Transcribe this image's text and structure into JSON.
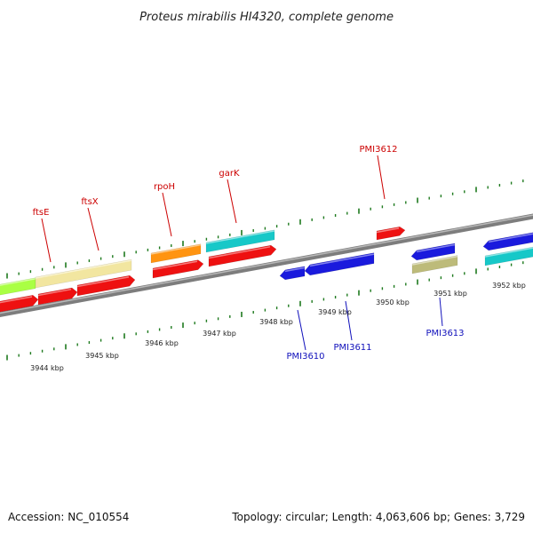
{
  "title": "Proteus mirabilis HI4320, complete genome",
  "footer": {
    "accession": "Accession: NC_010554",
    "summary": "Topology: circular; Length: 4,063,606 bp; Genes: 3,729"
  },
  "colors": {
    "backbone": "#8a8a8a",
    "tick": "#1e7a1e",
    "red": "#ee1111",
    "blue": "#1a1add",
    "lime": "#aaff44",
    "khaki": "#f2e6a0",
    "orange": "#ff9411",
    "cyan": "#17c8c8",
    "olive": "#bdbb7a",
    "label_red": "#cc0000",
    "label_blue": "#1010bb"
  },
  "kbp_labels": [
    "3944 kbp",
    "3945 kbp",
    "3946 kbp",
    "3947 kbp",
    "3948 kbp",
    "3949 kbp",
    "3950 kbp",
    "3951 kbp",
    "3952 kbp"
  ],
  "gene_labels_top": [
    "ftsE",
    "ftsX",
    "rpoH",
    "garK",
    "PMI3612"
  ],
  "gene_labels_bottom": [
    "PMI3610",
    "PMI3611",
    "PMI3613"
  ],
  "features": [
    {
      "kind": "block",
      "color": "lime",
      "track": "top"
    },
    {
      "kind": "block",
      "color": "khaki",
      "track": "top"
    },
    {
      "kind": "block",
      "color": "orange",
      "track": "top"
    },
    {
      "kind": "block",
      "color": "cyan",
      "track": "top"
    },
    {
      "kind": "gene",
      "color": "red",
      "strand": "+"
    },
    {
      "kind": "gene",
      "color": "red",
      "strand": "+"
    },
    {
      "kind": "gene",
      "color": "red",
      "strand": "+"
    },
    {
      "kind": "gene",
      "color": "red",
      "strand": "+"
    },
    {
      "kind": "gene",
      "color": "red",
      "strand": "+"
    },
    {
      "kind": "gene",
      "color": "red",
      "strand": "+"
    },
    {
      "kind": "gene",
      "color": "blue",
      "strand": "-"
    },
    {
      "kind": "gene",
      "color": "blue",
      "strand": "-"
    },
    {
      "kind": "gene",
      "color": "blue",
      "strand": "-"
    },
    {
      "kind": "gene",
      "color": "blue",
      "strand": "-"
    },
    {
      "kind": "block",
      "color": "cyan",
      "track": "bottom"
    },
    {
      "kind": "block",
      "color": "olive",
      "track": "bottom"
    }
  ]
}
